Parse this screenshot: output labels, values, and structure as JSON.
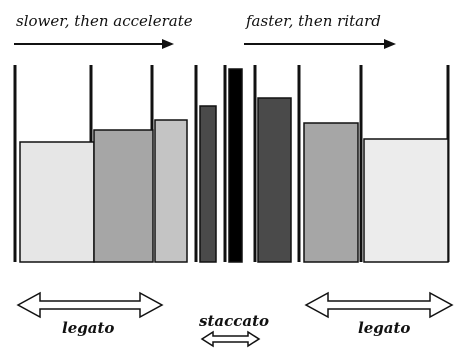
{
  "captions": {
    "left_arrow": "slower, then accelerate",
    "right_arrow": "faster, then ritard"
  },
  "articulation": {
    "left": "legato",
    "middle": "staccato",
    "right": "legato"
  },
  "colors": {
    "background": "#ffffff",
    "line": "#111111",
    "box_light": "#e6e6e6",
    "box_mid": "#a6a6a6",
    "box_dark": "#4a4a4a",
    "box_black": "#000000"
  }
}
